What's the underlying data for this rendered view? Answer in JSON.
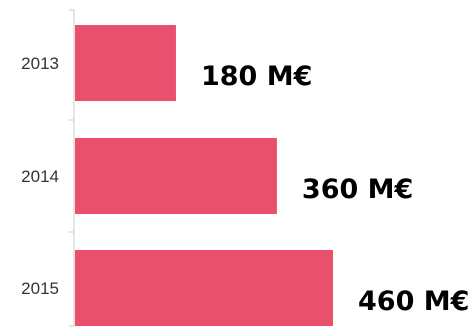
{
  "chart_data": {
    "type": "bar",
    "orientation": "horizontal",
    "categories": [
      "2013",
      "2014",
      "2015"
    ],
    "values": [
      180,
      360,
      460
    ],
    "value_labels": [
      "180 M€",
      "360 M€",
      "460 M€"
    ],
    "unit": "M€",
    "xlim": [
      0,
      460
    ],
    "title": "",
    "xlabel": "",
    "ylabel": "",
    "grid": false,
    "legend": "none",
    "colors": {
      "bar": "#e8506e",
      "axis": "#cccccc",
      "category_text": "#333333",
      "value_text": "#000000"
    }
  }
}
